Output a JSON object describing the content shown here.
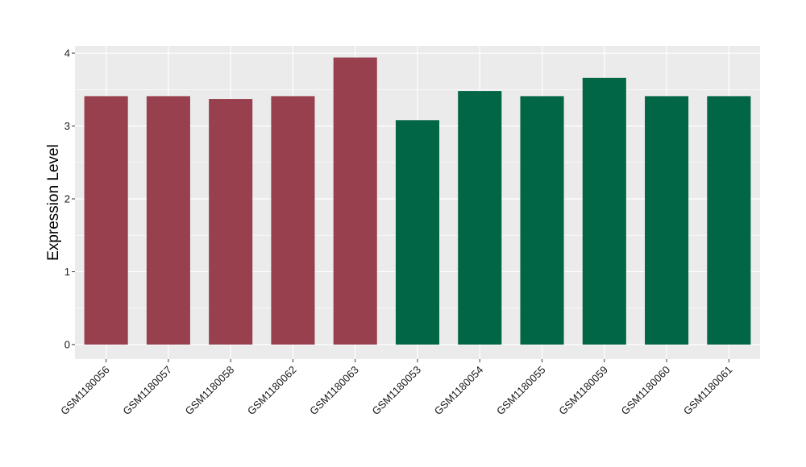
{
  "chart_data": {
    "type": "bar",
    "title": "",
    "xlabel": "",
    "ylabel": "Expression Level",
    "ylim": [
      -0.2,
      4.1
    ],
    "yticks": [
      0,
      1,
      2,
      3,
      4
    ],
    "grid": true,
    "categories": [
      "GSM1180056",
      "GSM1180057",
      "GSM1180058",
      "GSM1180062",
      "GSM1180063",
      "GSM1180053",
      "GSM1180054",
      "GSM1180055",
      "GSM1180059",
      "GSM1180060",
      "GSM1180061"
    ],
    "values": [
      3.41,
      3.41,
      3.37,
      3.41,
      3.94,
      3.08,
      3.48,
      3.41,
      3.66,
      3.41,
      3.41
    ],
    "bar_colors": [
      "#99404f",
      "#99404f",
      "#99404f",
      "#99404f",
      "#99404f",
      "#006645",
      "#006645",
      "#006645",
      "#006645",
      "#006645",
      "#006645"
    ],
    "panel_background": "#ebebeb",
    "grid_color": "#ffffff"
  }
}
